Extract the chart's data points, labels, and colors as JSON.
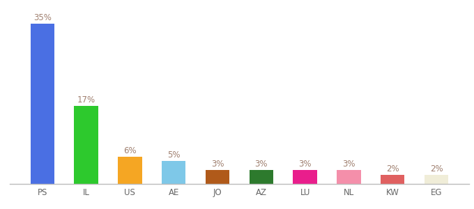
{
  "categories": [
    "PS",
    "IL",
    "US",
    "AE",
    "JO",
    "AZ",
    "LU",
    "NL",
    "KW",
    "EG"
  ],
  "values": [
    35,
    17,
    6,
    5,
    3,
    3,
    3,
    3,
    2,
    2
  ],
  "bar_colors": [
    "#4a6fe3",
    "#2dc92d",
    "#f5a623",
    "#7ec8e8",
    "#b05a1a",
    "#2d7a2d",
    "#e91e8c",
    "#f48faa",
    "#e06060",
    "#f0edd8"
  ],
  "label_color": "#a08070",
  "background_color": "#ffffff",
  "ylim": [
    0,
    37
  ],
  "bar_width": 0.55,
  "label_fontsize": 8.5,
  "tick_fontsize": 8.5,
  "figsize": [
    6.8,
    3.0
  ],
  "dpi": 100
}
